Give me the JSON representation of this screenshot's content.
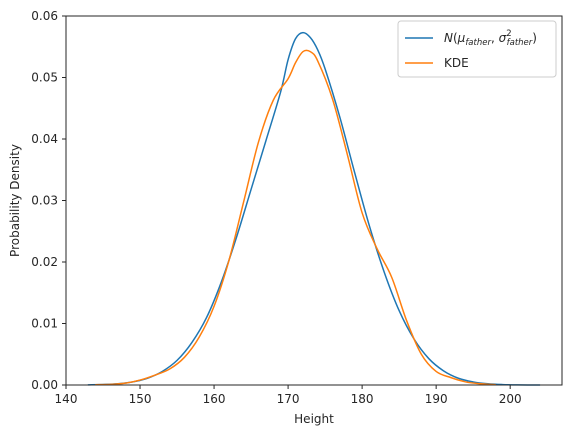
{
  "chart_data": {
    "type": "line",
    "xlabel": "Height",
    "ylabel": "Probability Density",
    "xlim": [
      140,
      207
    ],
    "ylim": [
      0,
      0.06
    ],
    "x_ticks": [
      140,
      150,
      160,
      170,
      180,
      190,
      200
    ],
    "y_ticks": [
      0.0,
      0.01,
      0.02,
      0.03,
      0.04,
      0.05,
      0.06
    ],
    "x_tick_labels": [
      "140",
      "150",
      "160",
      "170",
      "180",
      "190",
      "200"
    ],
    "y_tick_labels": [
      "0.00",
      "0.01",
      "0.02",
      "0.03",
      "0.04",
      "0.05",
      "0.06"
    ],
    "grid": false,
    "legend_position": "top-right",
    "series": [
      {
        "name": "N(μ_father, σ²_father)",
        "color": "#1f77b4",
        "x": [
          143,
          145,
          147,
          149,
          151,
          153,
          155,
          157,
          159,
          161,
          163,
          165,
          167,
          169,
          170,
          171,
          172,
          173,
          174,
          175,
          177,
          179,
          181,
          183,
          185,
          187,
          189,
          191,
          193,
          195,
          197,
          199,
          201,
          204
        ],
        "y": [
          3e-05,
          8e-05,
          0.0002,
          0.0005,
          0.0011,
          0.0022,
          0.004,
          0.0069,
          0.011,
          0.0168,
          0.0239,
          0.0318,
          0.0397,
          0.0477,
          0.0529,
          0.0563,
          0.0573,
          0.0565,
          0.0545,
          0.0514,
          0.0435,
          0.0345,
          0.0258,
          0.0183,
          0.0121,
          0.0075,
          0.0043,
          0.0023,
          0.0011,
          0.0005,
          0.0002,
          7e-05,
          2e-05,
          0.0
        ]
      },
      {
        "name": "KDE",
        "color": "#ff7f0e",
        "x": [
          144,
          146,
          148,
          150,
          152,
          154,
          156,
          158,
          160,
          162,
          164,
          166,
          168,
          170,
          171,
          172,
          173,
          174,
          176,
          178,
          180,
          182,
          184,
          186,
          188,
          190,
          192,
          194,
          196,
          198
        ],
        "y": [
          5e-05,
          0.0001,
          0.0003,
          0.0008,
          0.0016,
          0.0026,
          0.0045,
          0.0078,
          0.0128,
          0.0202,
          0.0298,
          0.0395,
          0.0463,
          0.0498,
          0.0524,
          0.0542,
          0.0542,
          0.0527,
          0.0465,
          0.0375,
          0.028,
          0.0222,
          0.0175,
          0.0105,
          0.005,
          0.0022,
          0.0012,
          0.0005,
          0.0002,
          5e-05
        ]
      }
    ]
  }
}
